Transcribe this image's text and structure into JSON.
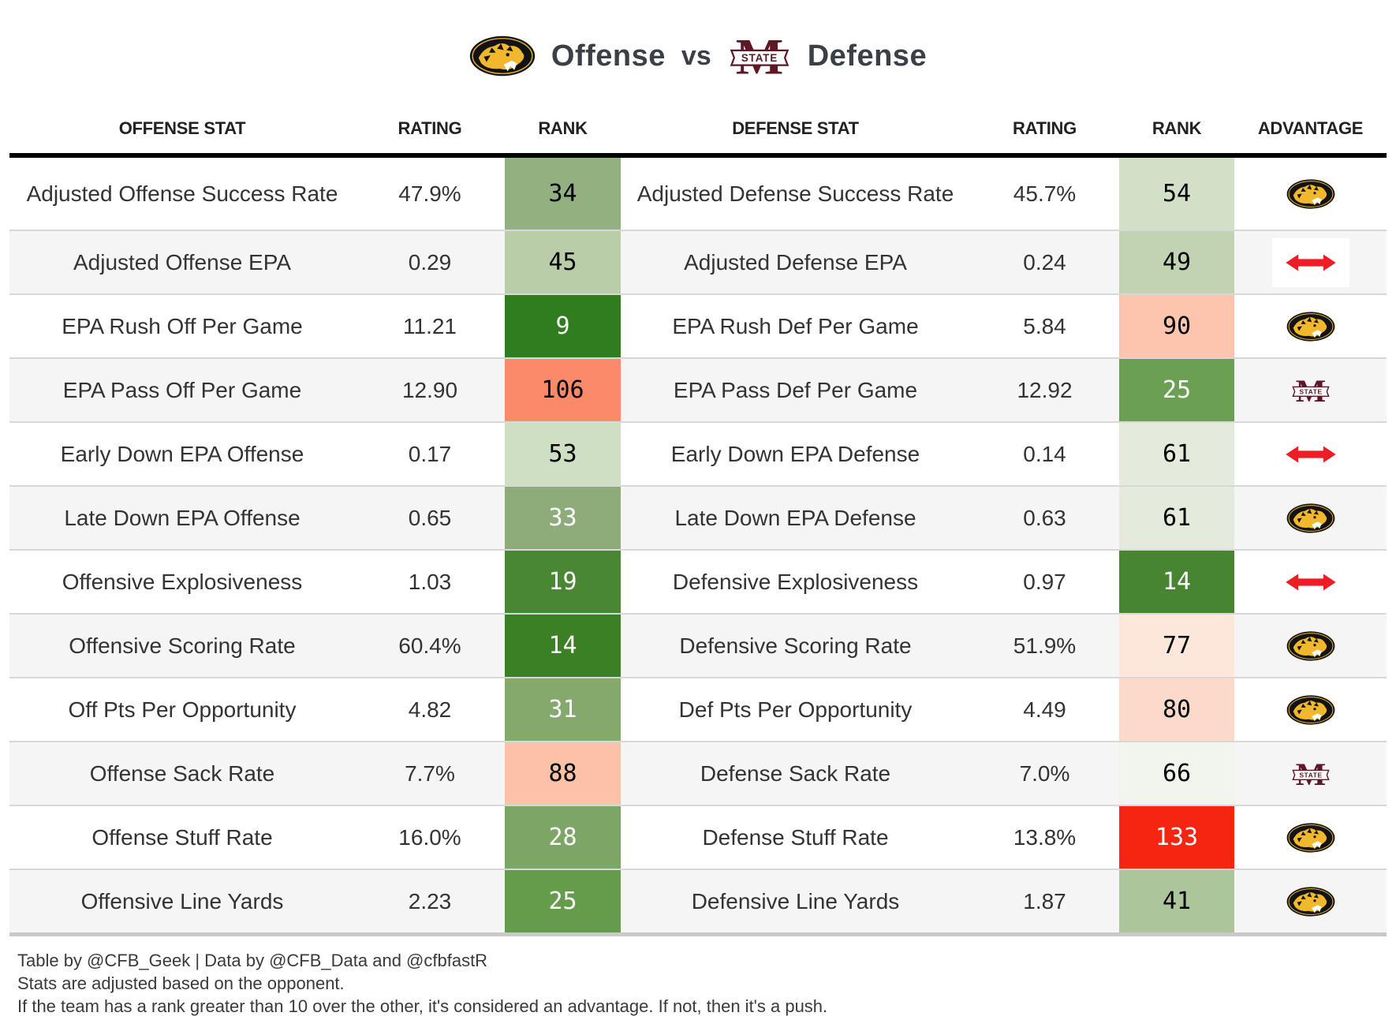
{
  "title": {
    "left_label": "Offense",
    "vs": "vs",
    "right_label": "Defense",
    "left_logo": "missouri-tigers-logo",
    "right_logo": "mississippi-state-logo"
  },
  "header": {
    "offense_stat": "OFFENSE STAT",
    "offense_rating": "RATING",
    "offense_rank": "RANK",
    "defense_stat": "DEFENSE STAT",
    "defense_rating": "RATING",
    "defense_rank": "RANK",
    "advantage": "ADVANTAGE"
  },
  "rows": [
    {
      "offense": {
        "stat": "Adjusted Offense Success Rate",
        "rating": "47.9%",
        "rank": "34",
        "rank_bg": "#93b180",
        "rank_fg": "#000000"
      },
      "defense": {
        "stat": "Adjusted Defense Success Rate",
        "rating": "45.7%",
        "rank": "54",
        "rank_bg": "#d2e0c8",
        "rank_fg": "#000000"
      },
      "advantage": "missouri"
    },
    {
      "offense": {
        "stat": "Adjusted Offense EPA",
        "rating": "0.29",
        "rank": "45",
        "rank_bg": "#b9cda9",
        "rank_fg": "#000000"
      },
      "defense": {
        "stat": "Adjusted Defense EPA",
        "rating": "0.24",
        "rank": "49",
        "rank_bg": "#c1d3b1",
        "rank_fg": "#000000"
      },
      "advantage": "push"
    },
    {
      "offense": {
        "stat": "EPA Rush Off Per Game",
        "rating": "11.21",
        "rank": "9",
        "rank_bg": "#2f7d1e",
        "rank_fg": "#ffffff"
      },
      "defense": {
        "stat": "EPA Rush Def Per Game",
        "rating": "5.84",
        "rank": "90",
        "rank_bg": "#fdc5ad",
        "rank_fg": "#000000"
      },
      "advantage": "missouri"
    },
    {
      "offense": {
        "stat": "EPA Pass Off Per Game",
        "rating": "12.90",
        "rank": "106",
        "rank_bg": "#fa8a69",
        "rank_fg": "#000000"
      },
      "defense": {
        "stat": "EPA Pass Def Per Game",
        "rating": "12.92",
        "rank": "25",
        "rank_bg": "#6a9f54",
        "rank_fg": "#ffffff"
      },
      "advantage": "mississippi_state"
    },
    {
      "offense": {
        "stat": "Early Down EPA Offense",
        "rating": "0.17",
        "rank": "53",
        "rank_bg": "#cfdfc4",
        "rank_fg": "#000000"
      },
      "defense": {
        "stat": "Early Down EPA Defense",
        "rating": "0.14",
        "rank": "61",
        "rank_bg": "#e4ebdc",
        "rank_fg": "#000000"
      },
      "advantage": "push"
    },
    {
      "offense": {
        "stat": "Late Down EPA Offense",
        "rating": "0.65",
        "rank": "33",
        "rank_bg": "#8dac7a",
        "rank_fg": "#ffffff"
      },
      "defense": {
        "stat": "Late Down EPA Defense",
        "rating": "0.63",
        "rank": "61",
        "rank_bg": "#e4ebdc",
        "rank_fg": "#000000"
      },
      "advantage": "missouri"
    },
    {
      "offense": {
        "stat": "Offensive Explosiveness",
        "rating": "1.03",
        "rank": "19",
        "rank_bg": "#4a8733",
        "rank_fg": "#ffffff"
      },
      "defense": {
        "stat": "Defensive Explosiveness",
        "rating": "0.97",
        "rank": "14",
        "rank_bg": "#478531",
        "rank_fg": "#ffffff"
      },
      "advantage": "push"
    },
    {
      "offense": {
        "stat": "Offensive Scoring Rate",
        "rating": "60.4%",
        "rank": "14",
        "rank_bg": "#3b8024",
        "rank_fg": "#ffffff"
      },
      "defense": {
        "stat": "Defensive Scoring Rate",
        "rating": "51.9%",
        "rank": "77",
        "rank_bg": "#fde6da",
        "rank_fg": "#000000"
      },
      "advantage": "missouri"
    },
    {
      "offense": {
        "stat": "Off Pts Per Opportunity",
        "rating": "4.82",
        "rank": "31",
        "rank_bg": "#83a96d",
        "rank_fg": "#ffffff"
      },
      "defense": {
        "stat": "Def Pts Per Opportunity",
        "rating": "4.49",
        "rank": "80",
        "rank_bg": "#fcd9c9",
        "rank_fg": "#000000"
      },
      "advantage": "missouri"
    },
    {
      "offense": {
        "stat": "Offense Sack Rate",
        "rating": "7.7%",
        "rank": "88",
        "rank_bg": "#fcc2a7",
        "rank_fg": "#000000"
      },
      "defense": {
        "stat": "Defense Sack Rate",
        "rating": "7.0%",
        "rank": "66",
        "rank_bg": "#f1f5ee",
        "rank_fg": "#000000"
      },
      "advantage": "mississippi_state"
    },
    {
      "offense": {
        "stat": "Offense Stuff Rate",
        "rating": "16.0%",
        "rank": "28",
        "rank_bg": "#7da565",
        "rank_fg": "#ffffff"
      },
      "defense": {
        "stat": "Defense Stuff Rate",
        "rating": "13.8%",
        "rank": "133",
        "rank_bg": "#f52511",
        "rank_fg": "#ffffff"
      },
      "advantage": "missouri"
    },
    {
      "offense": {
        "stat": "Offensive Line Yards",
        "rating": "2.23",
        "rank": "25",
        "rank_bg": "#659c4c",
        "rank_fg": "#ffffff"
      },
      "defense": {
        "stat": "Defensive Line Yards",
        "rating": "1.87",
        "rank": "41",
        "rank_bg": "#adc59b",
        "rank_fg": "#000000"
      },
      "advantage": "missouri"
    }
  ],
  "footer": {
    "line1": "Table by @CFB_Geek | Data by @CFB_Data and @cfbfastR",
    "line2": "Stats are adjusted based on the opponent.",
    "line3": "If the team has a rank greater than 10 over the other, it's considered an advantage. If not, then it's a push."
  },
  "colors": {
    "push_arrow": "#ee1c24",
    "missouri_gold": "#f1b82d",
    "missouri_black": "#131313",
    "msstate_maroon": "#5d1725",
    "header_rule": "#000000",
    "row_alt": "#f5f5f5",
    "row_divider": "#d8d8d8",
    "table_bottom_rule": "#c9c9c9"
  }
}
